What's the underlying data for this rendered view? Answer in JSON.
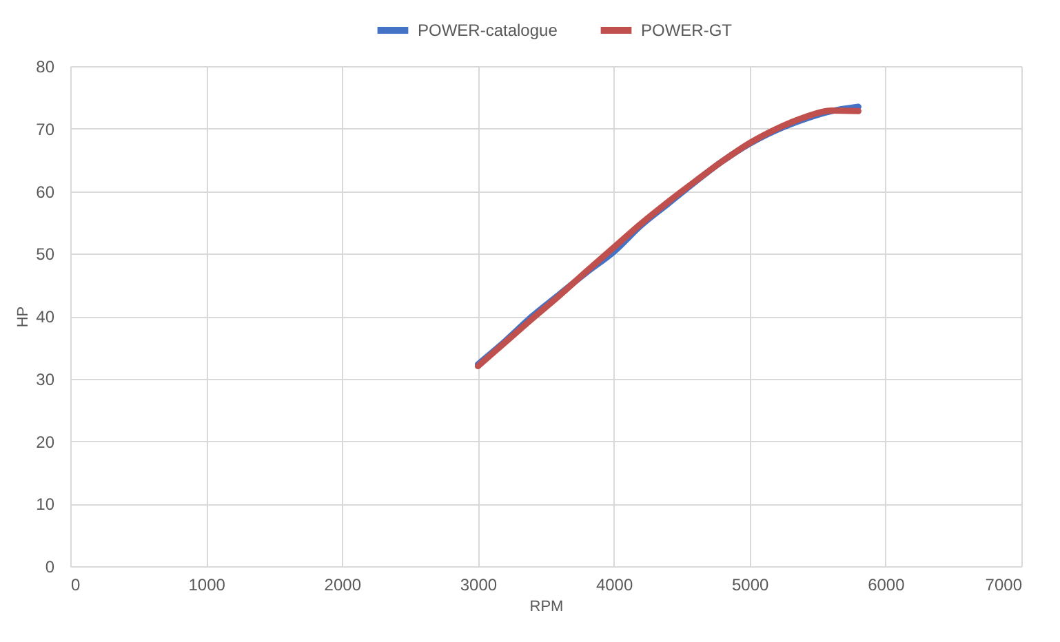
{
  "chart_data": {
    "type": "line",
    "xlabel": "RPM",
    "ylabel": "HP",
    "x": [
      3000,
      3200,
      3400,
      3600,
      3800,
      4000,
      4200,
      4400,
      4600,
      4800,
      5000,
      5200,
      5400,
      5600,
      5800
    ],
    "series": [
      {
        "name": "POWER-catalogue",
        "color": "#4472c4",
        "values": [
          32.3,
          36,
          40,
          43.5,
          47,
          50.3,
          54.5,
          58,
          61.5,
          64.8,
          67.6,
          69.8,
          71.5,
          72.8,
          73.5
        ]
      },
      {
        "name": "POWER-GT",
        "color": "#c0504d",
        "values": [
          32,
          35.8,
          39.6,
          43.3,
          47.2,
          51,
          54.8,
          58.3,
          61.6,
          64.8,
          67.7,
          70,
          71.8,
          72.9,
          72.8
        ]
      }
    ],
    "xlim": [
      0,
      7000
    ],
    "xticks": [
      0,
      1000,
      2000,
      3000,
      4000,
      5000,
      6000,
      7000
    ],
    "ylim": [
      0,
      80
    ],
    "yticks": [
      0,
      10,
      20,
      30,
      40,
      50,
      60,
      70,
      80
    ],
    "grid": true,
    "legend": "top",
    "line_style": "solid",
    "marker": "none"
  }
}
